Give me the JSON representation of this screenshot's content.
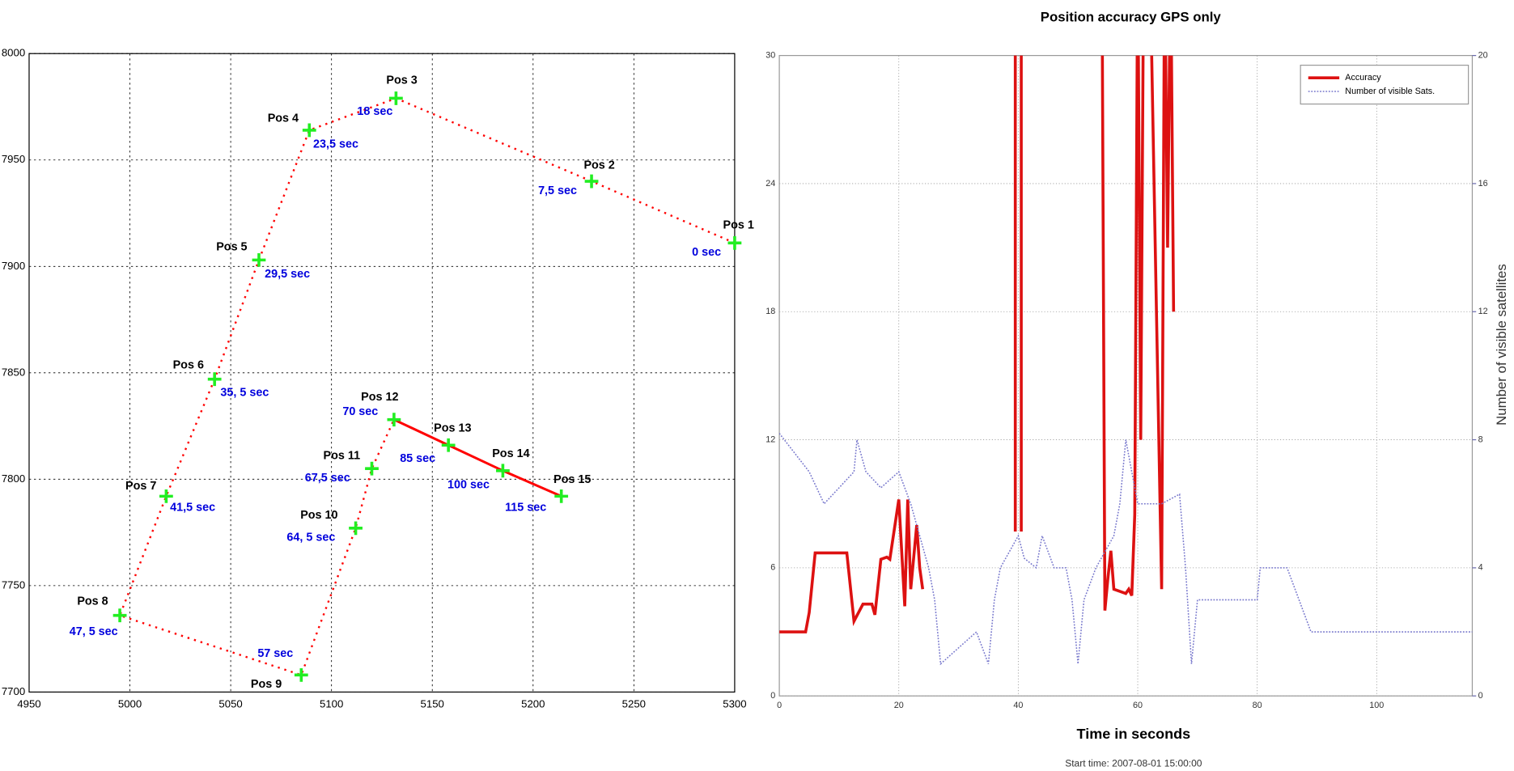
{
  "chart_data": [
    {
      "type": "scatter",
      "labels": [
        "Pos 1",
        "Pos 2",
        "Pos 3",
        "Pos 4",
        "Pos 5",
        "Pos 6",
        "Pos 7",
        "Pos 8",
        "Pos 9",
        "Pos 10",
        "Pos 11",
        "Pos 12",
        "Pos 13",
        "Pos 14",
        "Pos 15"
      ],
      "times": [
        "0 sec",
        "7,5 sec",
        "18 sec",
        "23,5 sec",
        "29,5 sec",
        "35, 5 sec",
        "41,5 sec",
        "47, 5 sec",
        "57 sec",
        "64, 5 sec",
        "67,5 sec",
        "70 sec",
        "85 sec",
        "100 sec",
        "115 sec"
      ],
      "x": [
        5300,
        5229,
        5132,
        5089,
        5064,
        5042,
        5018,
        4995,
        5085,
        5112,
        5120,
        5131,
        5158,
        5185,
        5214
      ],
      "y": [
        7911,
        7940,
        7979,
        7964,
        7903,
        7847,
        7792,
        7736,
        7708,
        7777,
        7805,
        7828,
        7816,
        7804,
        7792
      ],
      "color": "#ff0000",
      "marker_color": "#22ee22",
      "time_color": "#0000dd",
      "xlim": [
        4950,
        5300
      ],
      "ylim": [
        7700,
        8000
      ],
      "xticks": [
        4950,
        5000,
        5050,
        5100,
        5150,
        5200,
        5250,
        5300
      ],
      "yticks": [
        7700,
        7750,
        7800,
        7850,
        7900,
        7950,
        8000
      ],
      "grid": true
    },
    {
      "type": "line",
      "title": "Position accuracy GPS only",
      "x_label": "Time in seconds",
      "y2_label": "Number of visible satellites",
      "note": "Start time: 2007-08-01 15:00:00",
      "series": [
        {
          "name": "Accuracy",
          "color": "#dd1111",
          "x": [
            0,
            4.4,
            5,
            6,
            11.3,
            12.5,
            14,
            15.5,
            16,
            17,
            18,
            18.5,
            20,
            21,
            21.5,
            22,
            23,
            23.5,
            24,
            30,
            39.5,
            39.5,
            40.5,
            40.5,
            45,
            54,
            54.5,
            55,
            55.5,
            56,
            57,
            58,
            58.5,
            59,
            59.5,
            60,
            60.5,
            61,
            62,
            64,
            64.5,
            65,
            65.5,
            66
          ],
          "values": [
            3.0,
            3.0,
            3.9,
            6.7,
            6.7,
            3.5,
            4.3,
            4.3,
            3.8,
            6.4,
            6.5,
            6.4,
            9.2,
            4.2,
            9.2,
            5,
            8,
            6,
            5,
            null,
            7.7,
            35,
            35,
            7.7,
            null,
            35,
            4,
            5.5,
            6.8,
            5,
            4.9,
            4.8,
            5,
            4.7,
            8.5,
            35,
            12,
            35,
            35,
            5,
            35,
            21,
            35,
            18
          ]
        },
        {
          "name": "Number of visible Sats.",
          "color": "#7777cc",
          "axis": "y2",
          "x": [
            0,
            5,
            7.5,
            12.5,
            13,
            14.5,
            17,
            20,
            22,
            25,
            26,
            27,
            33,
            35,
            36,
            37,
            40,
            41,
            43,
            44,
            46,
            48,
            49,
            50,
            51,
            53,
            56,
            57,
            58,
            59,
            60,
            64,
            67,
            68,
            69,
            70,
            72,
            80,
            80.5,
            85,
            89,
            116
          ],
          "values": [
            8.2,
            7,
            6,
            7,
            8,
            7,
            6.5,
            7,
            6,
            4,
            3,
            1,
            2,
            1,
            3,
            4,
            5,
            4.3,
            4,
            5,
            4,
            4,
            3,
            1,
            3,
            4,
            5,
            6,
            8,
            7,
            6,
            6,
            6.3,
            4,
            1,
            3,
            3,
            3,
            4,
            4,
            2,
            2
          ]
        }
      ],
      "xlim": [
        0,
        116
      ],
      "xticks": [
        0,
        20,
        40,
        60,
        80,
        100
      ],
      "ylim": [
        0,
        30
      ],
      "yticks": [
        0,
        6,
        12,
        18,
        24,
        30
      ],
      "y2lim": [
        0,
        20
      ],
      "y2ticks": [
        0,
        4,
        8,
        12,
        16,
        20
      ],
      "grid": true,
      "legend": "upper right"
    }
  ]
}
